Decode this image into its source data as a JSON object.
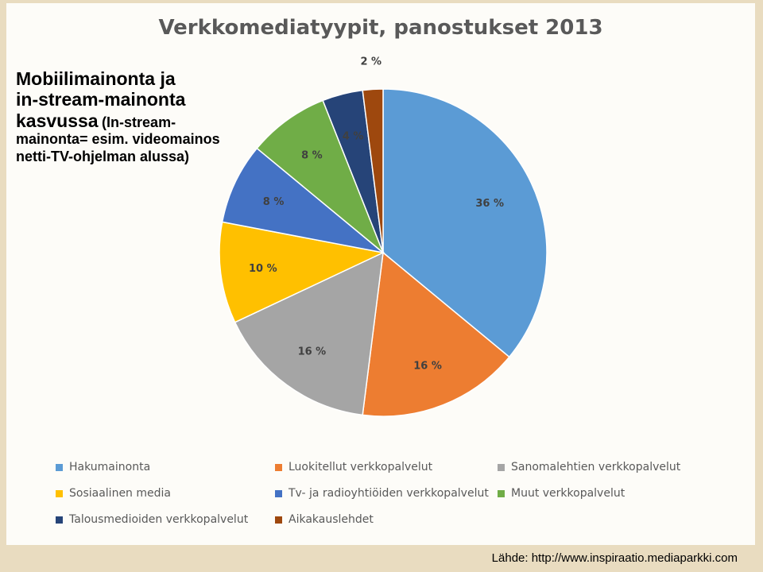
{
  "side_text": {
    "heading_line1": "Mobiilimainonta ja",
    "heading_line2": "in-stream-mainonta",
    "heading_line3": "kasvussa",
    "note": "(In-stream-mainonta= esim. videomainos netti-TV-ohjelman alussa)"
  },
  "source": "Lähde: http://www.inspiraatio.mediaparkki.com",
  "chart_data": {
    "type": "pie",
    "title": "Verkkomediatyypit, panostukset 2013",
    "legend_position": "bottom",
    "start_angle_deg": 0,
    "direction": "clockwise",
    "slices": [
      {
        "label": "Hakumainonta",
        "value": 36,
        "value_label": "36 %",
        "color": "#5b9bd5"
      },
      {
        "label": "Luokitellut verkkopalvelut",
        "value": 16,
        "value_label": "16 %",
        "color": "#ed7d31"
      },
      {
        "label": "Sanomalehtien verkkopalvelut",
        "value": 16,
        "value_label": "16 %",
        "color": "#a5a5a5"
      },
      {
        "label": "Sosiaalinen media",
        "value": 10,
        "value_label": "10 %",
        "color": "#ffc000"
      },
      {
        "label": "Tv- ja radioyhtiöiden verkkopalvelut",
        "value": 8,
        "value_label": "8 %",
        "color": "#4472c4"
      },
      {
        "label": "Muut verkkopalvelut",
        "value": 8,
        "value_label": "8 %",
        "color": "#70ad47"
      },
      {
        "label": "Talousmedioiden verkkopalvelut",
        "value": 4,
        "value_label": "4 %",
        "color": "#264478"
      },
      {
        "label": "Aikakauslehdet",
        "value": 2,
        "value_label": "2 %",
        "color": "#9e480e"
      }
    ]
  }
}
